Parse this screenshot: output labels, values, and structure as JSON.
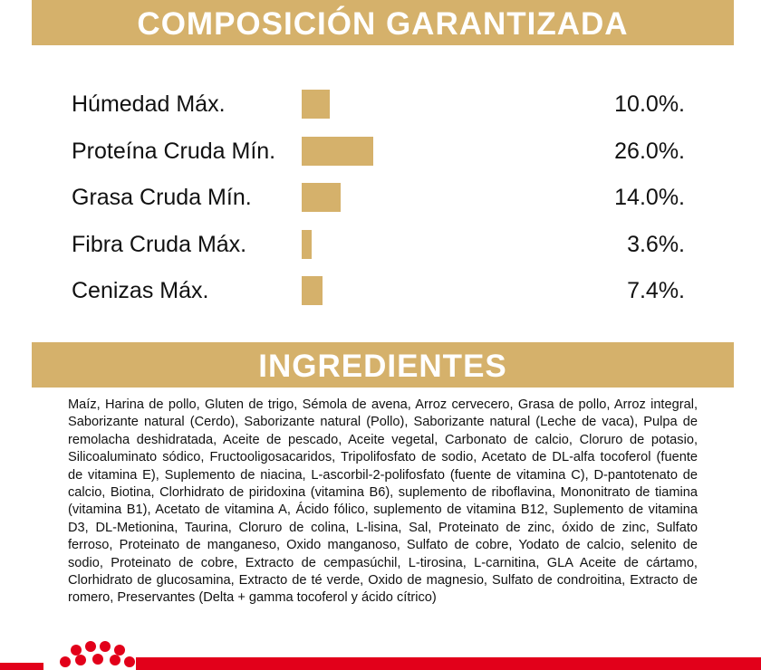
{
  "composition": {
    "title": "COMPOSICIÓN GARANTIZADA",
    "items": [
      {
        "label": "Húmedad Máx.",
        "value": 10.0,
        "value_label": "10.0%."
      },
      {
        "label": "Proteína Cruda Mín.",
        "value": 26.0,
        "value_label": "26.0%."
      },
      {
        "label": "Grasa Cruda Mín.",
        "value": 14.0,
        "value_label": "14.0%."
      },
      {
        "label": "Fibra Cruda Máx.",
        "value": 3.6,
        "value_label": "3.6%."
      },
      {
        "label": "Cenizas Máx.",
        "value": 7.4,
        "value_label": "7.4%."
      }
    ]
  },
  "ingredients": {
    "title": "INGREDIENTES",
    "text": "Maíz, Harina de pollo, Gluten de trigo, Sémola de avena, Arroz cervecero, Grasa de pollo, Arroz integral, Saborizante natural (Cerdo), Saborizante natural (Pollo), Saborizante natural (Leche de vaca), Pulpa de remolacha deshidratada, Aceite de pescado, Aceite vegetal, Carbonato de calcio, Cloruro de potasio, Silicoaluminato sódico, Fructooligosacaridos, Tripolifosfato de sodio, Acetato de DL-alfa tocoferol (fuente de vitamina E), Suplemento de niacina, L-ascorbil-2-polifosfato (fuente de vitamina C), D-pantotenato de calcio, Biotina, Clorhidrato de piridoxina (vitamina B6), suplemento de riboflavina, Mononitrato de tiamina (vitamina B1), Acetato de vitamina A, Ácido fólico, suplemento de vitamina B12, Suplemento de vitamina D3, DL-Metionina, Taurina, Cloruro de colina, L-lisina, Sal, Proteinato de zinc, óxido de zinc, Sulfato ferroso, Proteinato de manganeso, Oxido manganoso, Sulfato de cobre, Yodato de calcio, selenito de sodio, Proteinato de cobre, Extracto de cempasúchil, L-tirosina, L-carnitina, GLA Aceite de cártamo, Clorhidrato de glucosamina, Extracto de té verde, Oxido de magnesio, Sulfato de condroitina, Extracto de romero, Preservantes (Delta + gamma tocoferol y ácido cítrico)"
  }
}
